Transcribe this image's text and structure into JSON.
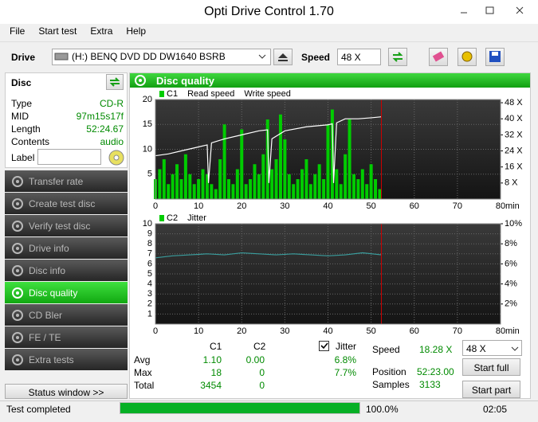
{
  "window": {
    "title": "Opti Drive Control 1.70"
  },
  "menu": [
    "File",
    "Start test",
    "Extra",
    "Help"
  ],
  "toolbar": {
    "drive_label": "Drive",
    "drive": "(H:)  BENQ DVD DD DW1640 BSRB",
    "speed_label": "Speed",
    "speed": "48 X"
  },
  "disc": {
    "title": "Disc",
    "rows": [
      [
        "Type",
        "CD-R"
      ],
      [
        "MID",
        "97m15s17f"
      ],
      [
        "Length",
        "52:24.67"
      ],
      [
        "Contents",
        "audio"
      ]
    ],
    "label": "Label"
  },
  "nav": {
    "items": [
      "Transfer rate",
      "Create test disc",
      "Verify test disc",
      "Drive info",
      "Disc info",
      "Disc quality",
      "CD Bler",
      "FE / TE",
      "Extra tests"
    ],
    "active": 5
  },
  "status_window": "Status window >>",
  "panel_title": "Disc quality",
  "chart_data": [
    {
      "type": "combo",
      "xlim": [
        0,
        80
      ],
      "xticks": [
        0,
        10,
        20,
        30,
        40,
        50,
        60,
        70,
        80
      ],
      "x_unit": "min",
      "ylim": [
        0,
        20
      ],
      "yticks": [
        5,
        10,
        15,
        20
      ],
      "y2lim": [
        0,
        49.6
      ],
      "y2ticks": [
        {
          "value": 8,
          "label": "8 X"
        },
        {
          "value": 16,
          "label": "16 X"
        },
        {
          "value": 24,
          "label": "24 X"
        },
        {
          "value": 32,
          "label": "32 X"
        },
        {
          "value": 40,
          "label": "40 X"
        },
        {
          "value": 48,
          "label": "48 X"
        }
      ],
      "grid": true,
      "position_marker": 52.38,
      "marker_color": "#cc0000",
      "series": [
        {
          "name": "C1",
          "type": "bar",
          "color": "#00cc00",
          "x": [
            0,
            1,
            2,
            3,
            4,
            5,
            6,
            7,
            8,
            9,
            10,
            11,
            12,
            13,
            14,
            15,
            16,
            17,
            18,
            19,
            20,
            21,
            22,
            23,
            24,
            25,
            26,
            27,
            28,
            29,
            30,
            31,
            32,
            33,
            34,
            35,
            36,
            37,
            38,
            39,
            40,
            41,
            42,
            43,
            44,
            45,
            46,
            47,
            48,
            49,
            50,
            51,
            52
          ],
          "values": [
            4,
            6,
            8,
            3,
            5,
            7,
            4,
            9,
            5,
            3,
            4,
            6,
            5,
            3,
            2,
            8,
            15,
            4,
            3,
            6,
            14,
            3,
            4,
            7,
            5,
            9,
            16,
            6,
            8,
            17,
            12,
            5,
            3,
            4,
            6,
            8,
            3,
            5,
            7,
            4,
            15,
            18,
            6,
            3,
            9,
            16,
            5,
            4,
            6,
            3,
            7,
            4,
            2
          ]
        },
        {
          "name": "Read speed",
          "type": "line",
          "axis": "y2",
          "color": "#ffffff",
          "x": [
            0,
            3,
            6,
            9,
            12,
            12.3,
            13,
            16,
            20,
            24,
            26,
            26.3,
            27,
            30,
            35,
            40,
            41,
            41.3,
            42,
            44,
            47,
            50,
            52.4
          ],
          "values": [
            21.6,
            22.5,
            24,
            25.5,
            27,
            8,
            28,
            30,
            32,
            34,
            34.5,
            8,
            30,
            34,
            36,
            37,
            37.5,
            8,
            38,
            40,
            40,
            40.5,
            41
          ]
        },
        {
          "name": "Write speed",
          "type": "line",
          "axis": "y2",
          "color": "#ffffff",
          "x": [],
          "values": []
        }
      ]
    },
    {
      "type": "combo",
      "xlim": [
        0,
        80
      ],
      "xticks": [
        0,
        10,
        20,
        30,
        40,
        50,
        60,
        70,
        80
      ],
      "x_unit": "min",
      "ylim": [
        0,
        10
      ],
      "yticks": [
        1,
        2,
        3,
        4,
        5,
        6,
        7,
        8,
        9,
        10
      ],
      "y2lim": [
        0,
        10
      ],
      "y2ticks": [
        {
          "value": 2,
          "label": "2%"
        },
        {
          "value": 4,
          "label": "4%"
        },
        {
          "value": 6,
          "label": "6%"
        },
        {
          "value": 8,
          "label": "8%"
        },
        {
          "value": 10,
          "label": "10%"
        }
      ],
      "grid": true,
      "position_marker": 52.38,
      "marker_color": "#cc0000",
      "series": [
        {
          "name": "C2",
          "type": "bar",
          "color": "#00cc00",
          "x": [
            0,
            4,
            8,
            12,
            16,
            20,
            24,
            28,
            32,
            36,
            40,
            44,
            48,
            52.4
          ],
          "values": [
            0,
            0,
            0,
            0,
            0,
            0,
            0,
            0,
            0,
            0,
            0,
            0,
            0,
            0
          ]
        },
        {
          "name": "Jitter",
          "type": "line",
          "axis": "y2",
          "color": "#3a9d9d",
          "x": [
            0,
            4,
            8,
            12,
            16,
            20,
            24,
            28,
            32,
            36,
            40,
            44,
            48,
            52.4
          ],
          "values": [
            6.6,
            6.8,
            6.9,
            7.0,
            6.9,
            7.1,
            7.0,
            6.9,
            7.0,
            6.9,
            6.8,
            6.9,
            7.1,
            6.9
          ]
        }
      ]
    }
  ],
  "stats": {
    "columns": [
      "C1",
      "C2"
    ],
    "rows": [
      {
        "label": "Avg",
        "values": [
          "1.10",
          "0.00"
        ]
      },
      {
        "label": "Max",
        "values": [
          "18",
          "0"
        ]
      },
      {
        "label": "Total",
        "values": [
          "3454",
          "0"
        ]
      }
    ],
    "jitter": {
      "label": "Jitter",
      "checked": true,
      "values": [
        "6.8%",
        "7.7%"
      ]
    },
    "info": [
      {
        "label": "Speed",
        "value": "18.28 X"
      },
      {
        "label": "Position",
        "value": "52:23.00"
      },
      {
        "label": "Samples",
        "value": "3133"
      }
    ],
    "speed": "48 X",
    "buttons": [
      "Start full",
      "Start part"
    ]
  },
  "status": {
    "text": "Test completed",
    "progress": 100,
    "progress_label": "100.0%",
    "time": "02:05"
  }
}
